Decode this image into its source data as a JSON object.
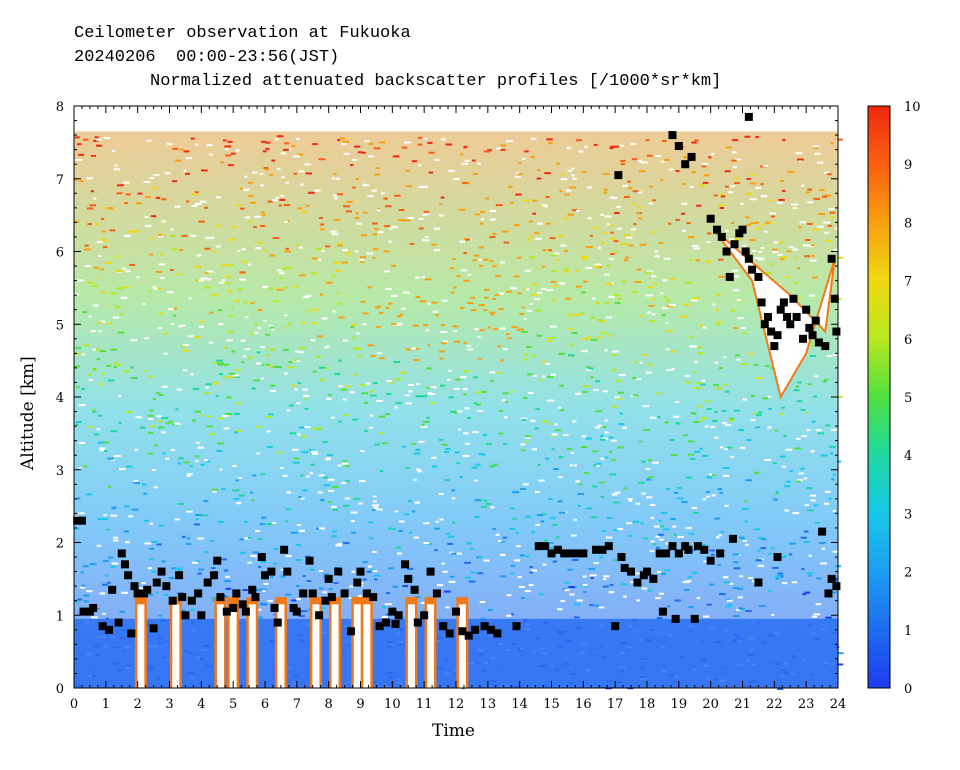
{
  "chart_data": {
    "type": "heatmap",
    "title_lines": [
      "Ceilometer observation at Fukuoka",
      "20240206  00:00-23:56(JST)",
      "Normalized attenuated backscatter profiles [/1000*sr*km]"
    ],
    "xlabel": "Time",
    "ylabel": "Altitude [km]",
    "xlim": [
      0,
      24
    ],
    "ylim": [
      0,
      8
    ],
    "x_ticks": [
      "0",
      "1",
      "2",
      "3",
      "4",
      "5",
      "6",
      "7",
      "8",
      "9",
      "10",
      "11",
      "12",
      "13",
      "14",
      "15",
      "16",
      "17",
      "18",
      "19",
      "20",
      "21",
      "22",
      "23",
      "24"
    ],
    "y_ticks": [
      "0",
      "1",
      "2",
      "3",
      "4",
      "5",
      "6",
      "7",
      "8"
    ],
    "colorbar": {
      "range": [
        0,
        10
      ],
      "ticks": [
        "0",
        "1",
        "2",
        "3",
        "4",
        "5",
        "6",
        "7",
        "8",
        "9",
        "10"
      ],
      "colors": [
        "#1e3cf0",
        "#1e6cf0",
        "#1c9ef2",
        "#18c8e8",
        "#1ed8a0",
        "#50e040",
        "#b8e820",
        "#f0d810",
        "#f8a010",
        "#f86010",
        "#f02810"
      ]
    },
    "cloud_base_series": {
      "name": "",
      "marker": "square",
      "color": "#000000",
      "points": [
        [
          0.1,
          2.3
        ],
        [
          0.25,
          2.3
        ],
        [
          0.3,
          1.05
        ],
        [
          0.5,
          1.05
        ],
        [
          0.6,
          1.1
        ],
        [
          0.9,
          0.85
        ],
        [
          1.1,
          0.8
        ],
        [
          1.2,
          1.35
        ],
        [
          1.4,
          0.9
        ],
        [
          1.5,
          1.85
        ],
        [
          1.6,
          1.7
        ],
        [
          1.7,
          1.55
        ],
        [
          1.8,
          0.75
        ],
        [
          1.9,
          1.4
        ],
        [
          2.0,
          1.3
        ],
        [
          2.2,
          1.3
        ],
        [
          2.3,
          1.35
        ],
        [
          2.5,
          0.82
        ],
        [
          2.6,
          1.45
        ],
        [
          2.75,
          1.6
        ],
        [
          2.9,
          1.4
        ],
        [
          3.1,
          1.2
        ],
        [
          3.3,
          1.55
        ],
        [
          3.4,
          1.25
        ],
        [
          3.5,
          1.0
        ],
        [
          3.7,
          1.2
        ],
        [
          3.9,
          1.3
        ],
        [
          4.0,
          1.0
        ],
        [
          4.2,
          1.45
        ],
        [
          4.4,
          1.55
        ],
        [
          4.5,
          1.75
        ],
        [
          4.6,
          1.25
        ],
        [
          4.8,
          1.05
        ],
        [
          5.0,
          1.1
        ],
        [
          5.1,
          1.3
        ],
        [
          5.3,
          1.15
        ],
        [
          5.4,
          1.05
        ],
        [
          5.6,
          1.35
        ],
        [
          5.7,
          1.25
        ],
        [
          5.9,
          1.8
        ],
        [
          6.0,
          1.55
        ],
        [
          6.2,
          1.6
        ],
        [
          6.3,
          1.1
        ],
        [
          6.4,
          0.9
        ],
        [
          6.6,
          1.9
        ],
        [
          6.7,
          1.6
        ],
        [
          6.9,
          1.1
        ],
        [
          7.0,
          1.05
        ],
        [
          7.2,
          1.3
        ],
        [
          7.4,
          1.75
        ],
        [
          7.5,
          1.3
        ],
        [
          7.7,
          1.0
        ],
        [
          7.9,
          1.2
        ],
        [
          8.0,
          1.5
        ],
        [
          8.1,
          1.25
        ],
        [
          8.3,
          1.6
        ],
        [
          8.5,
          1.3
        ],
        [
          8.7,
          0.78
        ],
        [
          8.9,
          1.45
        ],
        [
          9.0,
          1.6
        ],
        [
          9.2,
          1.3
        ],
        [
          9.4,
          1.25
        ],
        [
          9.6,
          0.85
        ],
        [
          9.8,
          0.9
        ],
        [
          10.0,
          1.05
        ],
        [
          10.1,
          0.88
        ],
        [
          10.2,
          1.0
        ],
        [
          10.4,
          1.7
        ],
        [
          10.5,
          1.5
        ],
        [
          10.7,
          1.35
        ],
        [
          10.8,
          0.9
        ],
        [
          11.0,
          1.0
        ],
        [
          11.2,
          1.6
        ],
        [
          11.4,
          1.3
        ],
        [
          11.6,
          0.85
        ],
        [
          11.8,
          0.75
        ],
        [
          12.0,
          1.05
        ],
        [
          12.2,
          0.78
        ],
        [
          12.4,
          0.72
        ],
        [
          12.6,
          0.8
        ],
        [
          12.9,
          0.85
        ],
        [
          13.1,
          0.8
        ],
        [
          13.3,
          0.75
        ],
        [
          13.9,
          0.85
        ],
        [
          14.6,
          1.95
        ],
        [
          14.8,
          1.95
        ],
        [
          15.0,
          1.85
        ],
        [
          15.2,
          1.9
        ],
        [
          15.4,
          1.85
        ],
        [
          15.6,
          1.85
        ],
        [
          15.8,
          1.85
        ],
        [
          16.0,
          1.85
        ],
        [
          16.4,
          1.9
        ],
        [
          16.6,
          1.9
        ],
        [
          16.8,
          1.95
        ],
        [
          17.0,
          0.85
        ],
        [
          17.2,
          1.8
        ],
        [
          17.3,
          1.65
        ],
        [
          17.5,
          1.6
        ],
        [
          17.7,
          1.45
        ],
        [
          17.9,
          1.55
        ],
        [
          18.0,
          1.6
        ],
        [
          18.2,
          1.5
        ],
        [
          18.4,
          1.85
        ],
        [
          18.5,
          1.05
        ],
        [
          18.6,
          1.85
        ],
        [
          18.8,
          1.95
        ],
        [
          18.9,
          0.95
        ],
        [
          19.0,
          1.85
        ],
        [
          19.2,
          1.95
        ],
        [
          19.3,
          1.9
        ],
        [
          19.5,
          0.95
        ],
        [
          19.6,
          1.95
        ],
        [
          19.8,
          1.9
        ],
        [
          20.0,
          1.75
        ],
        [
          20.3,
          1.85
        ],
        [
          20.7,
          2.05
        ],
        [
          21.5,
          1.45
        ],
        [
          22.1,
          1.8
        ],
        [
          23.5,
          2.15
        ],
        [
          23.7,
          1.3
        ],
        [
          23.8,
          1.5
        ],
        [
          23.95,
          1.4
        ],
        [
          17.1,
          7.05
        ],
        [
          18.8,
          7.6
        ],
        [
          19.0,
          7.45
        ],
        [
          19.2,
          7.2
        ],
        [
          19.4,
          7.3
        ],
        [
          20.0,
          6.45
        ],
        [
          20.2,
          6.3
        ],
        [
          20.35,
          6.2
        ],
        [
          20.5,
          6.0
        ],
        [
          20.6,
          5.65
        ],
        [
          20.75,
          6.1
        ],
        [
          20.9,
          6.25
        ],
        [
          21.0,
          6.3
        ],
        [
          21.1,
          6.0
        ],
        [
          21.2,
          5.9
        ],
        [
          21.3,
          5.75
        ],
        [
          21.5,
          5.65
        ],
        [
          21.6,
          5.3
        ],
        [
          21.7,
          5.0
        ],
        [
          21.8,
          5.1
        ],
        [
          21.9,
          4.9
        ],
        [
          22.0,
          4.7
        ],
        [
          22.1,
          4.85
        ],
        [
          22.2,
          5.2
        ],
        [
          22.3,
          5.3
        ],
        [
          22.4,
          5.1
        ],
        [
          22.5,
          5.0
        ],
        [
          22.6,
          5.35
        ],
        [
          22.7,
          5.1
        ],
        [
          22.9,
          4.8
        ],
        [
          23.0,
          5.2
        ],
        [
          23.1,
          4.95
        ],
        [
          23.2,
          4.85
        ],
        [
          23.3,
          5.05
        ],
        [
          23.4,
          4.75
        ],
        [
          23.6,
          4.7
        ],
        [
          23.8,
          5.9
        ],
        [
          23.9,
          5.35
        ],
        [
          23.95,
          4.9
        ],
        [
          21.1,
          7.95
        ],
        [
          21.2,
          7.85
        ]
      ]
    },
    "low_cloud_columns_hours": [
      2.1,
      3.2,
      4.6,
      5.0,
      5.6,
      6.5,
      7.6,
      8.2,
      8.9,
      9.2,
      10.6,
      11.2,
      12.2
    ],
    "upper_cloud_region": {
      "hours": [
        20.0,
        24.0
      ],
      "altitude_km": [
        4.0,
        6.5
      ]
    }
  }
}
